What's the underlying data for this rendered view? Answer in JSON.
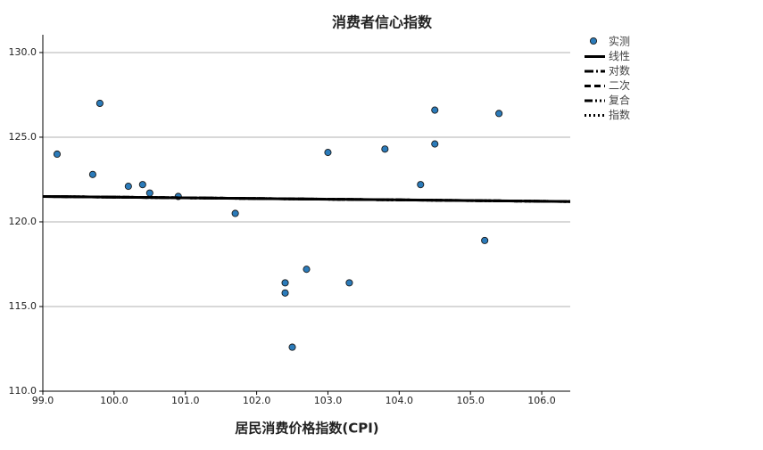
{
  "chart_data": {
    "type": "scatter",
    "title": "消费者信心指数",
    "x_label": "居民消费价格指数(CPI)",
    "xlim": [
      99.0,
      106.4
    ],
    "ylim": [
      110.0,
      131.05
    ],
    "xticks": [
      {
        "value": 99.0,
        "label": "99.0"
      },
      {
        "value": 100.0,
        "label": "100.0"
      },
      {
        "value": 101.0,
        "label": "101.0"
      },
      {
        "value": 102.0,
        "label": "102.0"
      },
      {
        "value": 103.0,
        "label": "103.0"
      },
      {
        "value": 104.0,
        "label": "104.0"
      },
      {
        "value": 105.0,
        "label": "105.0"
      },
      {
        "value": 106.0,
        "label": "106.0"
      }
    ],
    "yticks": [
      {
        "value": 110.0,
        "label": "110.0"
      },
      {
        "value": 115.0,
        "label": "115.0"
      },
      {
        "value": 120.0,
        "label": "120.0"
      },
      {
        "value": 125.0,
        "label": "125.0"
      },
      {
        "value": 130.0,
        "label": "130.0"
      }
    ],
    "grid": true,
    "series": [
      {
        "name": "实测",
        "color": "#2b7bba",
        "x": [
          99.2,
          99.7,
          99.8,
          100.2,
          100.4,
          100.5,
          100.9,
          101.7,
          102.4,
          102.4,
          102.5,
          102.7,
          103.0,
          103.3,
          103.8,
          104.3,
          104.5,
          104.5,
          105.2,
          105.4
        ],
        "values": [
          124.0,
          122.8,
          127.0,
          122.1,
          122.2,
          121.7,
          121.5,
          120.5,
          116.4,
          115.8,
          112.6,
          117.2,
          124.1,
          116.4,
          124.3,
          122.2,
          126.6,
          124.6,
          118.9,
          126.4
        ]
      },
      {
        "name": "线性",
        "color": "#000000",
        "style": "solid",
        "x": [
          99.0,
          106.4
        ],
        "values": [
          121.5,
          121.2
        ]
      },
      {
        "name": "对数",
        "color": "#000000",
        "style": "dash-dot",
        "x": [
          99.0,
          106.4
        ],
        "values": [
          121.5,
          121.2
        ]
      },
      {
        "name": "二次",
        "color": "#000000",
        "style": "dashed",
        "x": [
          99.0,
          106.4
        ],
        "values": [
          121.5,
          121.2
        ]
      },
      {
        "name": "复合",
        "color": "#000000",
        "style": "dash-dot-dot",
        "x": [
          99.0,
          106.4
        ],
        "values": [
          121.5,
          121.2
        ]
      },
      {
        "name": "指数",
        "color": "#000000",
        "style": "dotted",
        "x": [
          99.0,
          106.4
        ],
        "values": [
          121.5,
          121.2
        ]
      }
    ]
  }
}
